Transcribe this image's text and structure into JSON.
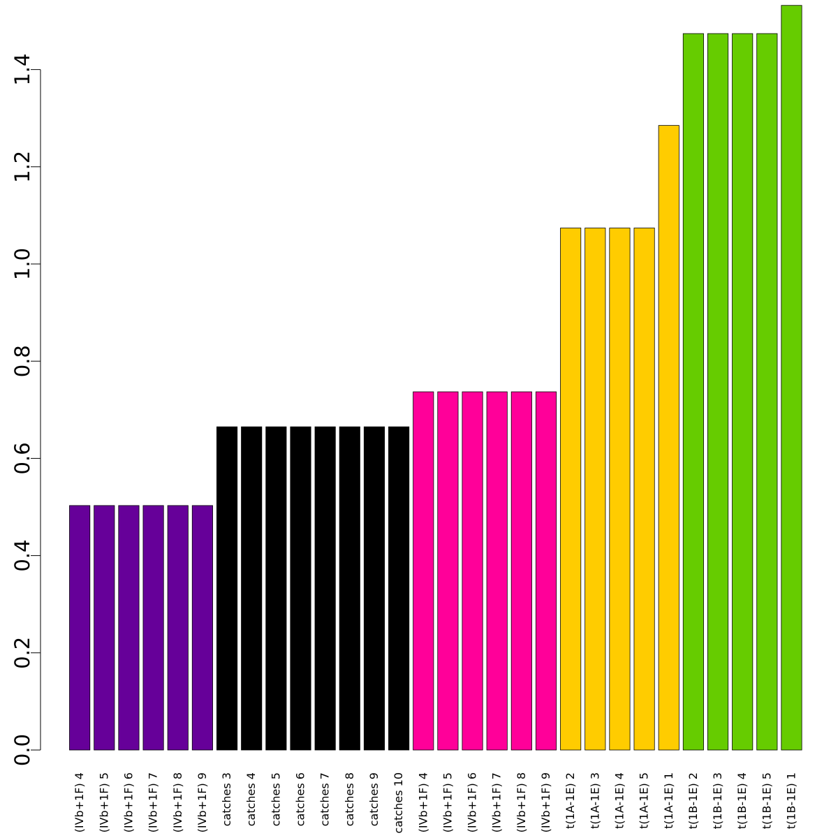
{
  "chart_data": {
    "type": "bar",
    "title": "",
    "xlabel": "",
    "ylabel": "",
    "ylim": [
      0,
      1.54
    ],
    "yticks": [
      0.0,
      0.2,
      0.4,
      0.6,
      0.8,
      1.0,
      1.2,
      1.4
    ],
    "ytick_labels": [
      "0.0",
      "0.2",
      "0.4",
      "0.6",
      "0.8",
      "1.0",
      "1.2",
      "1.4"
    ],
    "grid": false,
    "categories": [
      "(IVb+1F) 4",
      "(IVb+1F) 5",
      "(IVb+1F) 6",
      "(IVb+1F) 7",
      "(IVb+1F) 8",
      "(IVb+1F) 9",
      "catches 3",
      "catches 4",
      "catches 5",
      "catches 6",
      "catches 7",
      "catches 8",
      "catches 9",
      "catches 10",
      "(IVb+1F) 4",
      "(IVb+1F) 5",
      "(IVb+1F) 6",
      "(IVb+1F) 7",
      "(IVb+1F) 8",
      "(IVb+1F) 9",
      "t(1A-1E) 2",
      "t(1A-1E) 3",
      "t(1A-1E) 4",
      "t(1A-1E) 5",
      "t(1A-1E) 1",
      "t(1B-1E) 2",
      "t(1B-1E) 3",
      "t(1B-1E) 4",
      "t(1B-1E) 5",
      "t(1B-1E) 1"
    ],
    "values": [
      0.503,
      0.503,
      0.503,
      0.503,
      0.503,
      0.503,
      0.665,
      0.665,
      0.665,
      0.665,
      0.665,
      0.665,
      0.665,
      0.665,
      0.737,
      0.737,
      0.737,
      0.737,
      0.737,
      0.737,
      1.074,
      1.074,
      1.074,
      1.074,
      1.285,
      1.474,
      1.474,
      1.474,
      1.474,
      1.532
    ],
    "colors": [
      "#660099",
      "#660099",
      "#660099",
      "#660099",
      "#660099",
      "#660099",
      "#000000",
      "#000000",
      "#000000",
      "#000000",
      "#000000",
      "#000000",
      "#000000",
      "#000000",
      "#FF0099",
      "#FF0099",
      "#FF0099",
      "#FF0099",
      "#FF0099",
      "#FF0099",
      "#FFCC00",
      "#FFCC00",
      "#FFCC00",
      "#FFCC00",
      "#FFCC00",
      "#66CC00",
      "#66CC00",
      "#66CC00",
      "#66CC00",
      "#66CC00"
    ]
  }
}
